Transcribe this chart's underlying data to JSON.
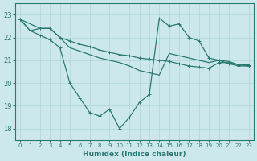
{
  "bg_color": "#cde8ec",
  "grid_color": "#aed4d8",
  "line_color": "#2a7a72",
  "xlabel": "Humidex (Indice chaleur)",
  "xlim": [
    -0.5,
    23.5
  ],
  "ylim": [
    17.5,
    23.5
  ],
  "yticks": [
    18,
    19,
    20,
    21,
    22,
    23
  ],
  "xticks": [
    0,
    1,
    2,
    3,
    4,
    5,
    6,
    7,
    8,
    9,
    10,
    11,
    12,
    13,
    14,
    15,
    16,
    17,
    18,
    19,
    20,
    21,
    22,
    23
  ],
  "line1_x": [
    0,
    1,
    2,
    3,
    4,
    5,
    6,
    7,
    8,
    9,
    10,
    11,
    12,
    13,
    14,
    15,
    16,
    17,
    18,
    19,
    20,
    21,
    22,
    23
  ],
  "line1_y": [
    22.8,
    22.3,
    22.4,
    22.4,
    22.0,
    21.85,
    21.7,
    21.6,
    21.45,
    21.35,
    21.25,
    21.2,
    21.1,
    21.05,
    21.0,
    20.95,
    20.85,
    20.75,
    20.7,
    20.65,
    20.9,
    20.9,
    20.8,
    20.8
  ],
  "line2_x": [
    0,
    2,
    3,
    4,
    5,
    6,
    7,
    8,
    9,
    10,
    11,
    12,
    13,
    14,
    15,
    16,
    17,
    18,
    19,
    20,
    21,
    22,
    23
  ],
  "line2_y": [
    22.8,
    22.4,
    22.4,
    22.0,
    21.55,
    21.4,
    21.25,
    21.1,
    21.0,
    20.9,
    20.75,
    20.55,
    20.45,
    20.35,
    21.3,
    21.2,
    21.1,
    21.0,
    20.9,
    21.0,
    20.95,
    20.8,
    20.75
  ],
  "line3_x": [
    0,
    1,
    2,
    3,
    4,
    5,
    6,
    7,
    8,
    9,
    10,
    11,
    12,
    13,
    14,
    15,
    16,
    17,
    18,
    19,
    20,
    21,
    22,
    23
  ],
  "line3_y": [
    22.8,
    22.3,
    22.1,
    21.9,
    21.55,
    20.0,
    19.35,
    18.7,
    18.55,
    18.85,
    18.0,
    18.5,
    19.15,
    19.5,
    22.85,
    22.5,
    22.6,
    22.0,
    21.85,
    21.1,
    21.0,
    20.85,
    20.75,
    20.75
  ]
}
